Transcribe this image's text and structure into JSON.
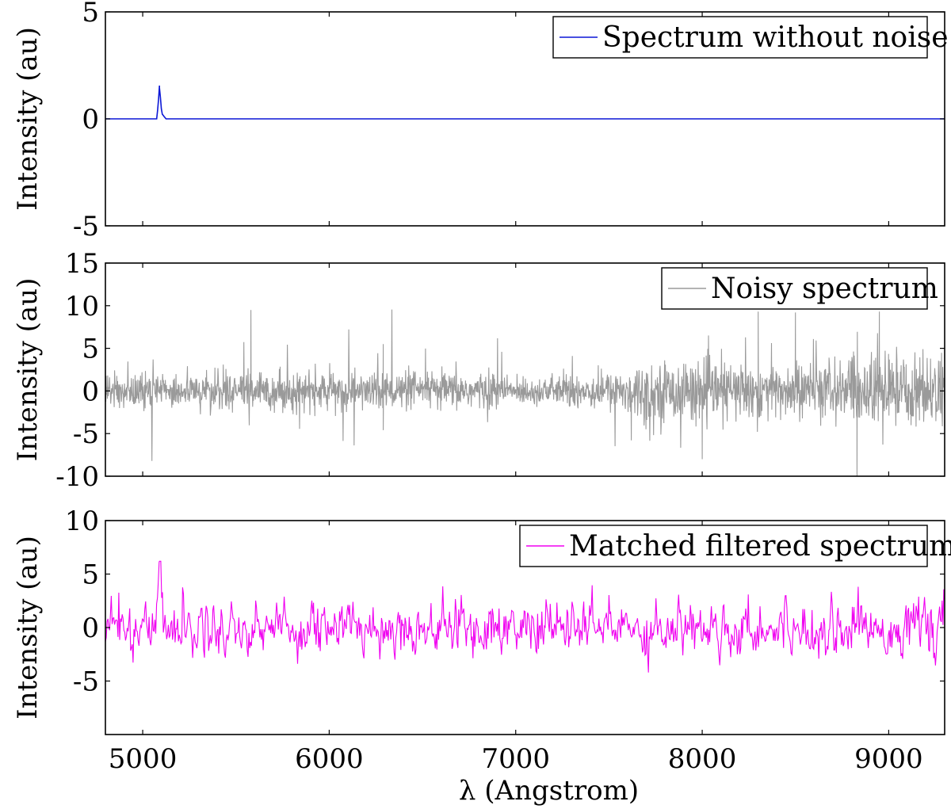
{
  "chart_data": [
    {
      "type": "line",
      "series": [
        {
          "name": "Spectrum without noise",
          "color": "#0b17d6",
          "kind": "clean"
        }
      ],
      "ylabel": "Intensity (au)",
      "xlim": [
        4800,
        9300
      ],
      "ylim": [
        -5,
        5
      ],
      "yticks": [
        5,
        0,
        -5
      ],
      "ytick_labels": [
        "5",
        "0",
        "-5"
      ],
      "xticks": [
        5000,
        6000,
        7000,
        8000,
        9000
      ],
      "peak": {
        "x": 5090,
        "y": 1.45
      },
      "legend": "top-right"
    },
    {
      "type": "line",
      "series": [
        {
          "name": "Noisy spectrum",
          "color": "#9a9a9a",
          "kind": "noisy"
        }
      ],
      "ylabel": "Intensity (au)",
      "xlim": [
        4800,
        9300
      ],
      "ylim": [
        -10,
        15
      ],
      "yticks": [
        15,
        10,
        5,
        0,
        -5,
        -10
      ],
      "ytick_labels": [
        "15",
        "10",
        "5",
        "0",
        "-5",
        "-10"
      ],
      "xticks": [
        5000,
        6000,
        7000,
        8000,
        9000
      ],
      "legend": "top-right"
    },
    {
      "type": "line",
      "series": [
        {
          "name": "Matched filtered spectrum",
          "color": "#f000f0",
          "kind": "filtered"
        }
      ],
      "ylabel": "Intensity (au)",
      "xlabel": "λ (Angstrom)",
      "xlim": [
        4800,
        9300
      ],
      "ylim": [
        -10,
        10
      ],
      "yticks": [
        10,
        5,
        0,
        -5
      ],
      "ytick_labels": [
        "10",
        "5",
        "0",
        "-5"
      ],
      "xticks": [
        5000,
        6000,
        7000,
        8000,
        9000
      ],
      "xtick_labels": [
        "5000",
        "6000",
        "7000",
        "8000",
        "9000"
      ],
      "peak": {
        "x": 5090,
        "y": 6.2
      },
      "legend": "top-right"
    }
  ]
}
